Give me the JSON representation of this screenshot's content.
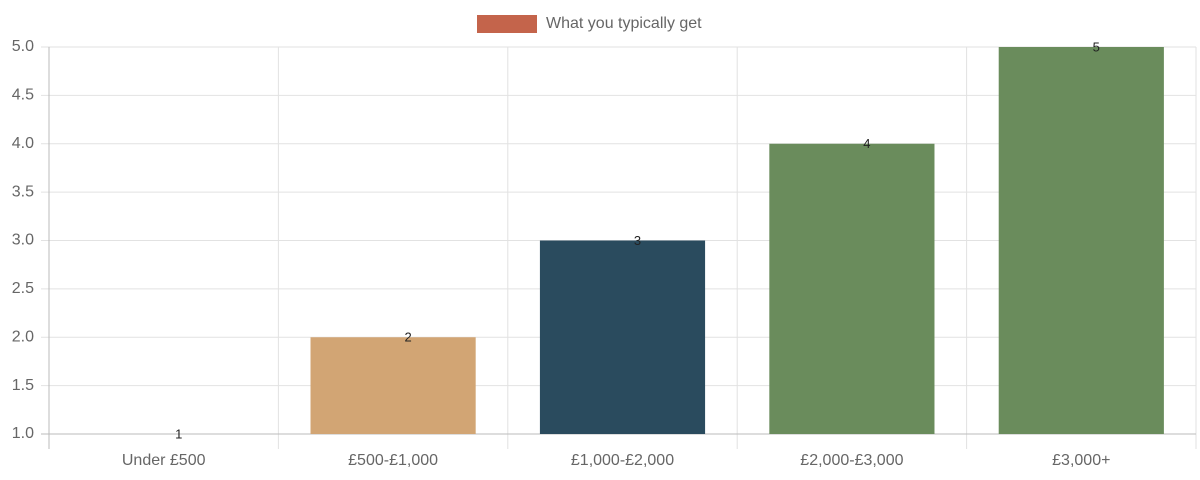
{
  "chart_data": {
    "type": "bar",
    "categories": [
      "Under £500",
      "£500-£1,000",
      "£1,000-£2,000",
      "£2,000-£3,000",
      "£3,000+"
    ],
    "series": [
      {
        "name": "What you typically get",
        "color": "#c4644b",
        "colors": [
          "#c4644b",
          "#d2a574",
          "#2a4b5e",
          "#6a8c5c",
          "#6a8c5c"
        ],
        "values": [
          1,
          2,
          3,
          4,
          5
        ]
      }
    ],
    "ylim": [
      1,
      5
    ],
    "yticks": [
      {
        "value": 1,
        "label": "1.0"
      },
      1.5,
      {
        "value": 2,
        "label": "2.0"
      },
      2.5,
      {
        "value": 3,
        "label": "3.0"
      },
      3.5,
      {
        "value": 4,
        "label": "4.0"
      },
      4.5,
      {
        "value": 5,
        "label": "5.0"
      }
    ],
    "grid": true,
    "legend": "top"
  }
}
